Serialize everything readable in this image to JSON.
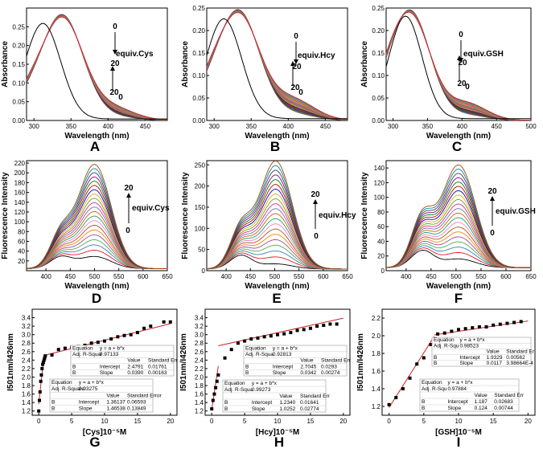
{
  "figure_letters": [
    "A",
    "B",
    "C",
    "D",
    "E",
    "F",
    "G",
    "H",
    "I"
  ],
  "chart_data": [
    {
      "id": "A",
      "type": "line",
      "xlabel": "Wavelength (nm)",
      "ylabel": "Absorbance",
      "xlim": [
        290,
        480
      ],
      "ylim": [
        0.0,
        0.3
      ],
      "xticks": [
        300,
        350,
        400,
        450
      ],
      "yticks": [
        0.0,
        0.05,
        0.1,
        0.15,
        0.2,
        0.25
      ],
      "x_tick_labels": [
        "300",
        "350",
        "400",
        "450"
      ],
      "y_tick_labels": [
        "0.00",
        "0.05",
        "0.10",
        "0.15",
        "0.20",
        "0.25"
      ],
      "annotations": [
        "0",
        "20",
        "equiv.Cys",
        "20",
        "0"
      ],
      "series_count": 21,
      "free_peak": 312,
      "free_peak_height": 0.255,
      "bound_peak": 338,
      "bound_peak_height": 0.28,
      "shoulder_x": 405,
      "shoulder_height": 0.035
    },
    {
      "id": "B",
      "type": "line",
      "xlabel": "Wavelength (nm)",
      "ylabel": "Absorbance",
      "xlim": [
        290,
        480
      ],
      "ylim": [
        0.0,
        0.25
      ],
      "xticks": [
        300,
        350,
        400,
        450
      ],
      "yticks": [
        0.0,
        0.05,
        0.1,
        0.15,
        0.2,
        0.25
      ],
      "x_tick_labels": [
        "300",
        "350",
        "400",
        "450"
      ],
      "y_tick_labels": [
        "0.00",
        "0.05",
        "0.10",
        "0.15",
        "0.20",
        "0.25"
      ],
      "annotations": [
        "0",
        "20",
        "equiv.Hcy",
        "20",
        "0"
      ],
      "series_count": 21,
      "free_peak": 313,
      "free_peak_height": 0.222,
      "bound_peak": 333,
      "bound_peak_height": 0.242,
      "shoulder_x": 405,
      "shoulder_height": 0.048
    },
    {
      "id": "C",
      "type": "line",
      "xlabel": "Wavelength (nm)",
      "ylabel": "Absorbance",
      "xlim": [
        290,
        500
      ],
      "ylim": [
        0.0,
        0.25
      ],
      "xticks": [
        300,
        350,
        400,
        450,
        500
      ],
      "yticks": [
        0.0,
        0.05,
        0.1,
        0.15,
        0.2,
        0.25
      ],
      "x_tick_labels": [
        "300",
        "350",
        "400",
        "450",
        "500"
      ],
      "y_tick_labels": [
        "0.00",
        "0.05",
        "0.10",
        "0.15",
        "0.20",
        "0.25"
      ],
      "annotations": [
        "0",
        "20",
        "equiv.GSH",
        "20",
        "0"
      ],
      "series_count": 21,
      "free_peak": 318,
      "free_peak_height": 0.228,
      "bound_peak": 326,
      "bound_peak_height": 0.238,
      "shoulder_x": 405,
      "shoulder_height": 0.04
    },
    {
      "id": "D",
      "type": "line",
      "xlabel": "Wavelength (nm)",
      "ylabel": "Fluorescence Intensity",
      "xlim": [
        360,
        650
      ],
      "ylim": [
        0,
        225
      ],
      "xticks": [
        400,
        450,
        500,
        550,
        600,
        650
      ],
      "yticks": [
        20,
        40,
        60,
        80,
        100,
        120,
        140,
        160,
        180,
        200,
        220
      ],
      "x_tick_labels": [
        "400",
        "450",
        "500",
        "550",
        "600",
        "650"
      ],
      "y_tick_labels": [
        "20",
        "40",
        "60",
        "80",
        "100",
        "120",
        "140",
        "160",
        "180",
        "200",
        "220"
      ],
      "annotations": [
        "20",
        "equiv.Cys",
        "0"
      ],
      "peak_x": 500,
      "peak_min": 25,
      "peak_max": 213,
      "shoulder_x": 430,
      "shoulder_max": 65
    },
    {
      "id": "E",
      "type": "line",
      "xlabel": "Wavelength (nm)",
      "ylabel": "Fluorescence Intensity",
      "xlim": [
        360,
        650
      ],
      "ylim": [
        0,
        260
      ],
      "xticks": [
        400,
        450,
        500,
        550,
        600,
        650
      ],
      "yticks": [
        0,
        50,
        100,
        150,
        200,
        250
      ],
      "x_tick_labels": [
        "400",
        "450",
        "500",
        "550",
        "600",
        "650"
      ],
      "y_tick_labels": [
        "0",
        "50",
        "100",
        "150",
        "200",
        "250"
      ],
      "annotations": [
        "20",
        "equiv.Hcy",
        "0"
      ],
      "peak_x": 502,
      "peak_min": 12,
      "peak_max": 255,
      "shoulder_x": 430,
      "shoulder_max": 90
    },
    {
      "id": "F",
      "type": "line",
      "xlabel": "Wavelength (nm)",
      "ylabel": "Fluorescence Intensity",
      "xlim": [
        360,
        650
      ],
      "ylim": [
        0,
        150
      ],
      "xticks": [
        400,
        450,
        500,
        550,
        600,
        650
      ],
      "yticks": [
        0,
        20,
        40,
        60,
        80,
        100,
        120,
        140
      ],
      "x_tick_labels": [
        "400",
        "450",
        "500",
        "550",
        "600",
        "650"
      ],
      "y_tick_labels": [
        "0",
        "20",
        "40",
        "60",
        "80",
        "100",
        "120",
        "140"
      ],
      "annotations": [
        "20",
        "equiv.GSH",
        "0"
      ],
      "peak_x": 505,
      "peak_min": 12,
      "peak_max": 140,
      "shoulder_x": 432,
      "shoulder_max": 65
    },
    {
      "id": "G",
      "type": "scatter",
      "xlabel": "[Cys]10⁻⁵M",
      "ylabel": "I501nm/I426nm",
      "xlim": [
        -1,
        21
      ],
      "ylim": [
        1.1,
        3.6
      ],
      "xticks": [
        0,
        5,
        10,
        15,
        20
      ],
      "yticks": [
        1.2,
        1.4,
        1.6,
        1.8,
        2.0,
        2.2,
        2.4,
        2.6,
        2.8,
        3.0,
        3.2,
        3.4
      ],
      "x_tick_labels": [
        "0",
        "5",
        "10",
        "15",
        "20"
      ],
      "y_tick_labels": [
        "1.2",
        "1.4",
        "1.6",
        "1.8",
        "2.0",
        "2.2",
        "2.4",
        "2.6",
        "2.8",
        "3.0",
        "3.2",
        "3.4"
      ],
      "x": [
        0.0,
        0.1,
        0.2,
        0.3,
        0.4,
        0.5,
        0.6,
        0.7,
        0.8,
        0.9,
        1.0,
        2.0,
        3.0,
        4.0,
        5.0,
        6.0,
        7.0,
        8.0,
        9.0,
        10.0,
        11.0,
        12.0,
        13.0,
        14.0,
        15.0,
        16.0,
        17.0,
        19.0,
        20.0
      ],
      "y": [
        1.2,
        1.45,
        1.65,
        1.9,
        2.05,
        2.2,
        2.3,
        2.35,
        2.4,
        2.45,
        2.5,
        2.52,
        2.65,
        2.68,
        2.7,
        2.72,
        2.75,
        2.8,
        2.82,
        2.85,
        2.9,
        2.95,
        2.98,
        3.0,
        3.05,
        3.15,
        3.2,
        3.3,
        3.3
      ],
      "fits": [
        {
          "intercept": 1.36137,
          "slope": 1.46538,
          "range": [
            0,
            0.8
          ]
        },
        {
          "intercept": 2.4791,
          "slope": 0.039,
          "range": [
            0.8,
            20
          ]
        }
      ],
      "tables": [
        {
          "rows": [
            [
              "Equation",
              "y = a + b*x",
              "",
              ""
            ],
            [
              "Adj. R-Squar",
              "0.97133",
              "",
              ""
            ],
            [
              "",
              "",
              "Value",
              "Standard Err"
            ],
            [
              "B",
              "Intercept",
              "2.4791",
              "0.01761"
            ],
            [
              "B",
              "Slope",
              "0.0390",
              "0.00163"
            ]
          ]
        },
        {
          "rows": [
            [
              "Equation",
              "y = a + b*x",
              "",
              ""
            ],
            [
              "Adj. R-Square",
              "0.93275",
              "",
              ""
            ],
            [
              "",
              "",
              "Value",
              "Standard Error"
            ],
            [
              "B",
              "Intercept",
              "1.36137",
              "0.06593"
            ],
            [
              "B",
              "Slope",
              "1.46538",
              "0.13849"
            ]
          ]
        }
      ]
    },
    {
      "id": "H",
      "type": "scatter",
      "xlabel": "[Hcy]10⁻⁵M",
      "ylabel": "I501nm/I426nm",
      "xlim": [
        -1,
        21
      ],
      "ylim": [
        1.1,
        3.6
      ],
      "xticks": [
        0,
        5,
        10,
        15,
        20
      ],
      "yticks": [
        1.2,
        1.4,
        1.6,
        1.8,
        2.0,
        2.2,
        2.4,
        2.6,
        2.8,
        3.0,
        3.2,
        3.4
      ],
      "x_tick_labels": [
        "0",
        "5",
        "10",
        "15",
        "20"
      ],
      "y_tick_labels": [
        "1.2",
        "1.4",
        "1.6",
        "1.8",
        "2.0",
        "2.2",
        "2.4",
        "2.6",
        "2.8",
        "3.0",
        "3.2",
        "3.4"
      ],
      "x": [
        0.0,
        0.2,
        0.4,
        0.6,
        0.8,
        1.0,
        2.0,
        3.0,
        4.0,
        5.0,
        6.0,
        7.0,
        8.0,
        9.0,
        10.0,
        11.0,
        12.0,
        13.0,
        14.0,
        15.0,
        16.0,
        17.0,
        18.0,
        19.0
      ],
      "y": [
        1.25,
        1.45,
        1.6,
        1.75,
        1.9,
        2.05,
        2.45,
        2.65,
        2.8,
        2.85,
        2.9,
        2.92,
        2.95,
        2.97,
        3.0,
        3.02,
        3.05,
        3.1,
        3.12,
        3.15,
        3.2,
        3.22,
        3.25,
        3.25
      ],
      "fits": [
        {
          "intercept": 1.234,
          "slope": 1.0252,
          "range": [
            0,
            1.0
          ]
        },
        {
          "intercept": 2.7045,
          "slope": 0.0342,
          "range": [
            1.0,
            20
          ]
        }
      ],
      "tables": [
        {
          "rows": [
            [
              "Equation",
              "y = a + b*x",
              "",
              ""
            ],
            [
              "Adj. R-Squa",
              "0.92813",
              "",
              ""
            ],
            [
              "",
              "",
              "Value",
              "Standard Err"
            ],
            [
              "B",
              "Intercept",
              "2.7045",
              "0.0293"
            ],
            [
              "B",
              "Slope",
              "0.0342",
              "0.00274"
            ]
          ]
        },
        {
          "rows": [
            [
              "Equation",
              "y = a + b*x",
              "",
              ""
            ],
            [
              "Adj. R-Squa",
              "0.99273",
              "",
              ""
            ],
            [
              "",
              "",
              "Value",
              "Standard Err"
            ],
            [
              "B",
              "Intercept",
              "1.2340",
              "0.01641"
            ],
            [
              "B",
              "Slope",
              "1.0252",
              "0.02774"
            ]
          ]
        }
      ]
    },
    {
      "id": "I",
      "type": "scatter",
      "xlabel": "[GSH]10⁻⁵M",
      "ylabel": "I501nm/I426nm",
      "xlim": [
        -1,
        21
      ],
      "ylim": [
        1.1,
        2.3
      ],
      "xticks": [
        0,
        5,
        10,
        15,
        20
      ],
      "yticks": [
        1.2,
        1.4,
        1.6,
        1.8,
        2.0,
        2.2
      ],
      "x_tick_labels": [
        "0",
        "5",
        "10",
        "15",
        "20"
      ],
      "y_tick_labels": [
        "1.2",
        "1.4",
        "1.6",
        "1.8",
        "2.0",
        "2.2"
      ],
      "x": [
        0,
        1,
        2,
        3,
        4,
        5,
        6,
        7,
        8,
        9,
        10,
        11,
        12,
        13,
        14,
        15,
        16,
        17,
        18,
        19
      ],
      "y": [
        1.22,
        1.3,
        1.4,
        1.52,
        1.68,
        1.75,
        1.9,
        2.02,
        2.03,
        2.05,
        2.07,
        2.08,
        2.09,
        2.1,
        2.1,
        2.12,
        2.13,
        2.14,
        2.15,
        2.16
      ],
      "fits": [
        {
          "intercept": 1.187,
          "slope": 0.124,
          "range": [
            0,
            6.5
          ]
        },
        {
          "intercept": 1.9329,
          "slope": 0.0117,
          "range": [
            6.5,
            20
          ]
        }
      ],
      "tables": [
        {
          "rows": [
            [
              "Equation",
              "y = a + b*x",
              "",
              ""
            ],
            [
              "Adj. R-Squ",
              "0.98523",
              "",
              ""
            ],
            [
              "",
              "",
              "Value",
              "Standard Er"
            ],
            [
              "B",
              "Intercept",
              "1.9329",
              "0.00562"
            ],
            [
              "B",
              "Slope",
              "0.0117",
              "3.98664E-4"
            ]
          ]
        },
        {
          "rows": [
            [
              "Equation",
              "y = a + b*x",
              "",
              ""
            ],
            [
              "Adj. R-Squ",
              "0.97884",
              "",
              ""
            ],
            [
              "",
              "",
              "Value",
              "Standard Err"
            ],
            [
              "B",
              "Intercept",
              "1.187",
              "0.02683"
            ],
            [
              "B",
              "Slope",
              "0.124",
              "0.00744"
            ]
          ]
        }
      ]
    }
  ]
}
